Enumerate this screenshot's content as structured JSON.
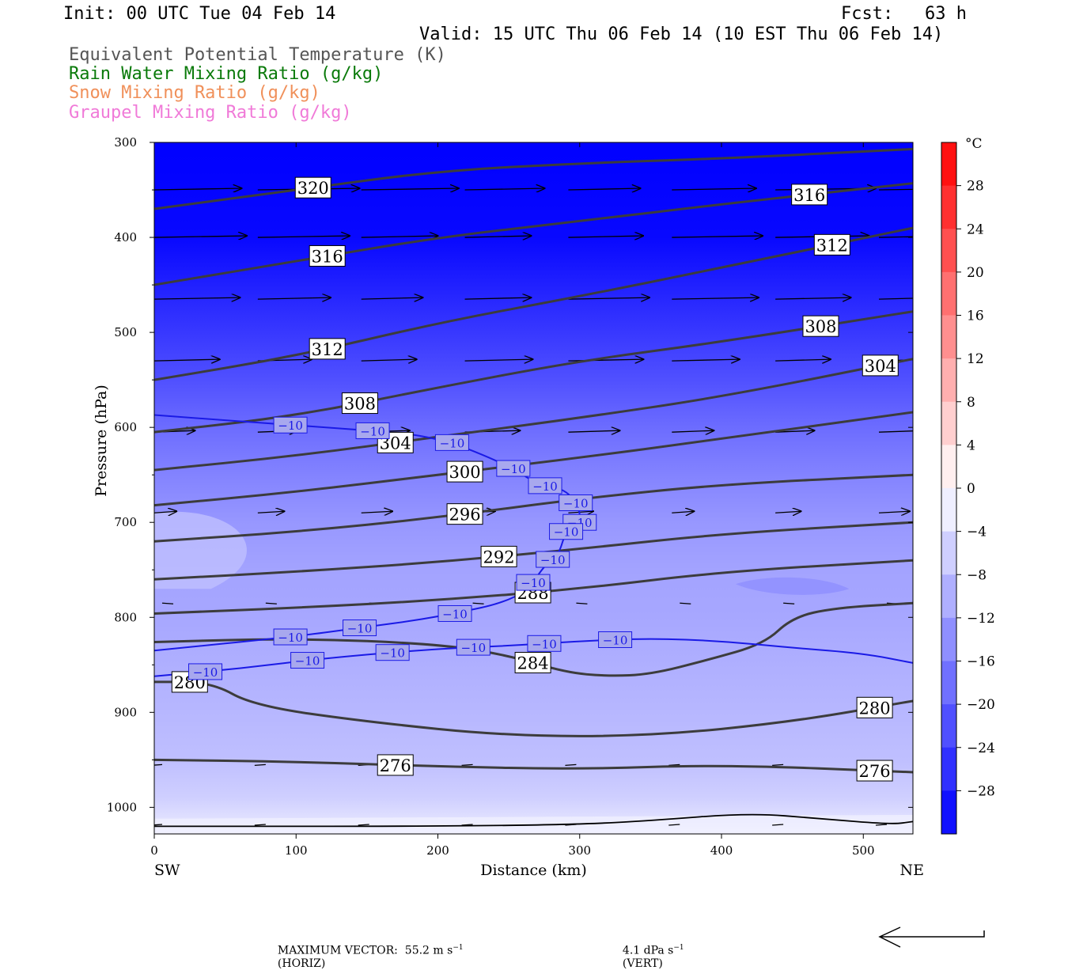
{
  "header": {
    "init": "Init: 00 UTC Tue 04 Feb 14",
    "fcst": "Fcst:   63 h",
    "valid": "Valid: 15 UTC Thu 06 Feb 14 (10 EST Thu 06 Feb 14)",
    "legend": [
      {
        "text": "Equivalent Potential Temperature (K)",
        "color": "#555555"
      },
      {
        "text": "Rain Water Mixing Ratio (g/kg)",
        "color": "#0a7a0a"
      },
      {
        "text": "Snow Mixing Ratio (g/kg)",
        "color": "#f0905a"
      },
      {
        "text": "Graupel Mixing Ratio (g/kg)",
        "color": "#f07ad8"
      }
    ]
  },
  "chart_data": {
    "type": "cross-section",
    "xlabel": "Distance (km)",
    "ylabel": "Pressure (hPa)",
    "xlim": [
      0,
      535
    ],
    "ylim": [
      1028,
      300
    ],
    "y_scale": "linear",
    "x_ticks": [
      "0",
      "100",
      "200",
      "300",
      "400",
      "500"
    ],
    "x_tick_values": [
      0,
      100,
      200,
      300,
      400,
      500
    ],
    "y_ticks": [
      "300",
      "400",
      "500",
      "600",
      "700",
      "800",
      "900",
      "1000"
    ],
    "y_tick_values": [
      300,
      400,
      500,
      600,
      700,
      800,
      900,
      1000
    ],
    "left_end_label": "SW",
    "right_end_label": "NE",
    "fill_field": {
      "name": "Temperature",
      "unit": "°C",
      "colorbar_labels": [
        "28",
        "24",
        "20",
        "16",
        "12",
        "8",
        "4",
        "0",
        "−4",
        "−8",
        "−12",
        "−16",
        "−20",
        "−24",
        "−28"
      ],
      "colorbar_values": [
        28,
        24,
        20,
        16,
        12,
        8,
        4,
        0,
        -4,
        -8,
        -12,
        -16,
        -20,
        -24,
        -28
      ],
      "range": [
        -32,
        32
      ],
      "profile_p": [
        300,
        400,
        450,
        500,
        550,
        600,
        650,
        700,
        750,
        800,
        850,
        900,
        950,
        990,
        1015,
        1028
      ],
      "profile_t": [
        -36,
        -31,
        -28,
        -25,
        -22,
        -18.5,
        -15.5,
        -13,
        -11.5,
        -11,
        -10,
        -9,
        -8,
        -6,
        -3.5,
        -0.5
      ]
    },
    "theta_e_contours": [
      {
        "label": "320",
        "x": [
          0,
          100,
          200,
          300,
          400,
          535
        ],
        "p": [
          370,
          350,
          330,
          322,
          317,
          307
        ]
      },
      {
        "label": "316",
        "x": [
          0,
          100,
          200,
          300,
          400,
          535
        ],
        "p": [
          450,
          425,
          400,
          383,
          365,
          343
        ]
      },
      {
        "label": "312",
        "x": [
          0,
          100,
          200,
          300,
          400,
          535
        ],
        "p": [
          550,
          525,
          490,
          462,
          432,
          390
        ]
      },
      {
        "label": "308",
        "x": [
          0,
          100,
          200,
          300,
          400,
          535
        ],
        "p": [
          605,
          588,
          558,
          530,
          510,
          478
        ]
      },
      {
        "label": "304",
        "x": [
          0,
          100,
          200,
          300,
          400,
          535
        ],
        "p": [
          645,
          630,
          610,
          590,
          568,
          528
        ]
      },
      {
        "label": "300",
        "x": [
          0,
          100,
          200,
          300,
          400,
          535
        ],
        "p": [
          682,
          668,
          650,
          632,
          612,
          584
        ]
      },
      {
        "label": "296",
        "x": [
          0,
          100,
          200,
          300,
          400,
          535
        ],
        "p": [
          720,
          710,
          695,
          675,
          660,
          650
        ]
      },
      {
        "label": "292",
        "x": [
          0,
          100,
          200,
          300,
          400,
          535
        ],
        "p": [
          760,
          752,
          742,
          728,
          712,
          700
        ]
      },
      {
        "label": "288",
        "x": [
          0,
          100,
          200,
          300,
          400,
          535
        ],
        "p": [
          796,
          790,
          782,
          770,
          752,
          740
        ]
      },
      {
        "label": "284",
        "x": [
          0,
          100,
          200,
          250,
          290,
          320,
          350,
          390,
          430,
          450,
          480,
          535
        ],
        "p": [
          826,
          822,
          828,
          840,
          858,
          862,
          860,
          845,
          828,
          800,
          790,
          785
        ]
      },
      {
        "label": "280",
        "x": [
          0,
          40,
          70,
          150,
          250,
          350,
          450,
          535
        ],
        "p": [
          868,
          868,
          893,
          910,
          925,
          925,
          910,
          888
        ]
      },
      {
        "label": "276",
        "x": [
          0,
          100,
          200,
          300,
          400,
          535
        ],
        "p": [
          950,
          952,
          957,
          960,
          955,
          963
        ]
      },
      {
        "label": "",
        "x": [
          0,
          200,
          300,
          350,
          420,
          470,
          520,
          535
        ],
        "p": [
          1020,
          1020,
          1018,
          1014,
          1006,
          1012,
          1018,
          1015
        ]
      }
    ],
    "minus10_isotherms": [
      {
        "label": "−10",
        "x": [
          0,
          100,
          150,
          200,
          250,
          270,
          290,
          300,
          300,
          290,
          285,
          275,
          260,
          200,
          140,
          100,
          0
        ],
        "p": [
          587,
          598,
          603,
          610,
          640,
          660,
          665,
          685,
          700,
          710,
          735,
          745,
          780,
          800,
          812,
          820,
          835
        ]
      },
      {
        "label": "−10",
        "x": [
          0,
          60,
          120,
          200,
          250,
          300,
          350,
          400,
          450,
          500,
          535
        ],
        "p": [
          862,
          854,
          843,
          833,
          830,
          825,
          822,
          825,
          832,
          838,
          848
        ]
      }
    ],
    "contour_labels_shown": {
      "theta_e": [
        "320",
        "316",
        "316",
        "312",
        "312",
        "308",
        "308",
        "304",
        "304",
        "300",
        "296",
        "292",
        "288",
        "284",
        "280",
        "280",
        "276",
        "276"
      ],
      "temperature": [
        "−10",
        "−10",
        "−10",
        "−10",
        "−10",
        "−10",
        "−10",
        "−10",
        "−10",
        "−10",
        "−10",
        "−10",
        "−10",
        "−10",
        "−10",
        "−10",
        "−10",
        "−10",
        "−10"
      ]
    },
    "wind_vector_levels_hPa": [
      350,
      400,
      465,
      530,
      605,
      690
    ],
    "light_wind_levels_hPa": [
      785,
      955,
      1018
    ]
  },
  "footer": {
    "max_vector": "MAXIMUM VECTOR:  55.2 m s",
    "horiz": "(HORIZ)",
    "vert": "4.1 dPa s",
    "vert_unit": "(VERT)",
    "sup": "−1"
  }
}
